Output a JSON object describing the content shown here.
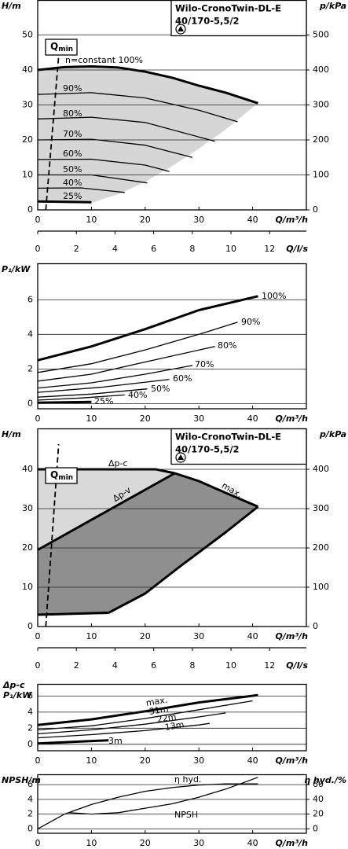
{
  "chart_data": [
    {
      "type": "line",
      "title_lines": [
        "Wilo-CronoTwin-DL-E",
        "40/170-5,5/2"
      ],
      "y_label": "H/m",
      "y2_label": "p/kPa",
      "x_label": "Q/m³/h",
      "x2_label": "Q/l/s",
      "qmin": {
        "text": "Q",
        "sub": "min"
      },
      "xlim": [
        0,
        50
      ],
      "xticks": [
        0,
        10,
        20,
        30,
        40
      ],
      "x2lim": [
        0,
        13.9
      ],
      "x2ticks": [
        0,
        2,
        4,
        6,
        8,
        10,
        12
      ],
      "ylim": [
        0,
        60
      ],
      "yticks": [
        0,
        10,
        20,
        30,
        40,
        50
      ],
      "y2lim": [
        0,
        600
      ],
      "y2ticks": [
        0,
        100,
        200,
        300,
        400,
        500
      ],
      "grid": true,
      "areas": [
        {
          "color": "#d6d6d6",
          "x": [
            0,
            5,
            10,
            15,
            20,
            25,
            30,
            35,
            41,
            35,
            30,
            25,
            20,
            15,
            10,
            0
          ],
          "values": [
            40,
            40.8,
            41,
            40.7,
            39.5,
            37.8,
            35.5,
            33.5,
            30.5,
            23,
            17.5,
            12.5,
            8,
            4.5,
            2,
            2.4
          ]
        }
      ],
      "series": [
        {
          "name": "n=constant 100%",
          "color": "#000000",
          "bold": true,
          "x": [
            0,
            5,
            10,
            15,
            20,
            25,
            30,
            35,
            41
          ],
          "values": [
            40,
            40.8,
            41,
            40.7,
            39.5,
            37.8,
            35.5,
            33.5,
            30.5
          ]
        },
        {
          "name": "90%",
          "color": "#000000",
          "x": [
            0,
            10,
            20,
            30,
            37.2
          ],
          "values": [
            33,
            33.5,
            32,
            28.5,
            25.2
          ]
        },
        {
          "name": "80%",
          "color": "#000000",
          "x": [
            0,
            10,
            20,
            33
          ],
          "values": [
            26,
            26.5,
            25,
            19.6
          ]
        },
        {
          "name": "70%",
          "color": "#000000",
          "x": [
            0,
            10,
            20,
            28.8
          ],
          "values": [
            20,
            20.2,
            18.5,
            15
          ]
        },
        {
          "name": "60%",
          "color": "#000000",
          "x": [
            0,
            10,
            20,
            24.5
          ],
          "values": [
            14.4,
            14.5,
            12.8,
            11
          ]
        },
        {
          "name": "50%",
          "color": "#000000",
          "x": [
            0,
            10,
            20.4
          ],
          "values": [
            10,
            10,
            7.7
          ]
        },
        {
          "name": "40%",
          "color": "#000000",
          "x": [
            0,
            8,
            16.2
          ],
          "values": [
            6.2,
            6.3,
            5
          ]
        },
        {
          "name": "25%",
          "color": "#000000",
          "bold": true,
          "x": [
            0,
            10
          ],
          "values": [
            2.4,
            2.2
          ]
        },
        {
          "color": "#000000",
          "dashed": true,
          "x": [
            1.5,
            3.9
          ],
          "values": [
            0,
            44
          ]
        }
      ]
    },
    {
      "type": "line",
      "y_label": "P₁/kW",
      "x_label": "Q/m³/h",
      "xlim": [
        0,
        50
      ],
      "xticks": [
        0,
        10,
        20,
        30,
        40
      ],
      "ylim": [
        -0.3,
        8.1
      ],
      "yticks": [
        0,
        2,
        4,
        6
      ],
      "grid": true,
      "series": [
        {
          "name": "100%",
          "color": "#000000",
          "bold": true,
          "x": [
            0,
            10,
            20,
            30,
            41
          ],
          "values": [
            2.5,
            3.3,
            4.3,
            5.4,
            6.2
          ]
        },
        {
          "name": "90%",
          "color": "#000000",
          "x": [
            0,
            10,
            20,
            30,
            37.2
          ],
          "values": [
            1.8,
            2.3,
            3.1,
            4.0,
            4.7
          ]
        },
        {
          "name": "80%",
          "color": "#000000",
          "x": [
            0,
            10,
            20,
            33
          ],
          "values": [
            1.3,
            1.7,
            2.4,
            3.3
          ]
        },
        {
          "name": "70%",
          "color": "#000000",
          "x": [
            0,
            10,
            20,
            28.8
          ],
          "values": [
            0.9,
            1.2,
            1.7,
            2.2
          ]
        },
        {
          "name": "60%",
          "color": "#000000",
          "x": [
            0,
            12,
            24.5
          ],
          "values": [
            0.65,
            0.95,
            1.4
          ]
        },
        {
          "name": "50%",
          "color": "#000000",
          "x": [
            0,
            10,
            20.4
          ],
          "values": [
            0.37,
            0.55,
            0.85
          ]
        },
        {
          "name": "40%",
          "color": "#000000",
          "x": [
            0,
            8,
            16.2
          ],
          "values": [
            0.2,
            0.32,
            0.5
          ]
        },
        {
          "name": "25%",
          "color": "#000000",
          "bold": true,
          "x": [
            0,
            10
          ],
          "values": [
            0.05,
            0.1
          ]
        }
      ]
    },
    {
      "type": "line",
      "title_lines": [
        "Wilo-CronoTwin-DL-E",
        "40/170-5,5/2"
      ],
      "y_label": "H/m",
      "y2_label": "p/kPa",
      "x_label": "Q/m³/h",
      "x2_label": "Q/l/s",
      "qmin": {
        "text": "Q",
        "sub": "min"
      },
      "xlim": [
        0,
        50
      ],
      "xticks": [
        0,
        10,
        20,
        30,
        40
      ],
      "x2lim": [
        0,
        13.9
      ],
      "x2ticks": [
        0,
        2,
        4,
        6,
        8,
        10,
        12
      ],
      "ylim": [
        0,
        50.4
      ],
      "yticks": [
        0,
        10,
        20,
        30,
        40
      ],
      "y2lim": [
        0,
        504
      ],
      "y2ticks": [
        0,
        100,
        200,
        300,
        400
      ],
      "grid": true,
      "areas": [
        {
          "color": "#d9d9d9",
          "x": [
            0,
            22,
            25.5,
            0
          ],
          "values": [
            40,
            40,
            39,
            19.5
          ]
        },
        {
          "color": "#8f8f8f",
          "x": [
            0,
            25.5,
            30,
            35,
            41,
            35,
            26.6,
            20,
            13.2,
            0
          ],
          "values": [
            19.5,
            39,
            37,
            34,
            30.5,
            24,
            15.4,
            8.4,
            3.5,
            3
          ]
        }
      ],
      "series": [
        {
          "name": "Δp-c",
          "color": "#000000",
          "bold": true,
          "x": [
            0,
            22
          ],
          "values": [
            40,
            40
          ]
        },
        {
          "name": "Δp-v",
          "color": "#000000",
          "bold": true,
          "x": [
            0,
            25.5
          ],
          "values": [
            19.5,
            39
          ]
        },
        {
          "name": "max.",
          "color": "#000000",
          "bold": true,
          "x": [
            22,
            25.5,
            30,
            35,
            41
          ],
          "values": [
            40,
            39,
            37,
            34,
            30.5
          ]
        },
        {
          "color": "#000000",
          "bold": true,
          "x": [
            0,
            13.2
          ],
          "values": [
            3,
            3.5
          ]
        },
        {
          "color": "#000000",
          "bold": true,
          "x": [
            13.2,
            20,
            26.6,
            35,
            41
          ],
          "values": [
            3.5,
            8.4,
            15.4,
            24,
            30.5
          ]
        },
        {
          "color": "#000000",
          "dashed": true,
          "x": [
            1.5,
            3.9
          ],
          "values": [
            0,
            46.4
          ]
        }
      ]
    },
    {
      "type": "line",
      "y_label_top": "Δp-c",
      "y_label": "P₁/kW",
      "x_label": "Q/m³/h",
      "xlim": [
        0,
        50
      ],
      "xticks": [
        0,
        10,
        20,
        30,
        40
      ],
      "ylim": [
        -0.8,
        7.5
      ],
      "yticks": [
        0,
        2,
        4,
        6
      ],
      "grid": true,
      "series": [
        {
          "name": "max.",
          "color": "#000000",
          "bold": true,
          "x": [
            0,
            10,
            20,
            30,
            41
          ],
          "values": [
            2.4,
            3.1,
            4.1,
            5.2,
            6.1
          ]
        },
        {
          "name": "31m",
          "color": "#000000",
          "x": [
            0,
            10,
            20,
            30,
            40
          ],
          "values": [
            1.8,
            2.3,
            3.2,
            4.3,
            5.4
          ]
        },
        {
          "name": "22m",
          "color": "#000000",
          "x": [
            0,
            10,
            20,
            30,
            35
          ],
          "values": [
            1.3,
            1.8,
            2.5,
            3.4,
            3.9
          ]
        },
        {
          "name": "13m",
          "color": "#000000",
          "x": [
            0,
            10,
            20,
            30,
            32
          ],
          "values": [
            0.8,
            1.2,
            1.7,
            2.4,
            2.6
          ]
        },
        {
          "name": "3m",
          "color": "#000000",
          "bold": true,
          "x": [
            0,
            13.2
          ],
          "values": [
            0.1,
            0.5
          ]
        }
      ]
    },
    {
      "type": "line",
      "y_label": "NPSH/m",
      "y2_label": "η hyd./%",
      "x_label": "Q/m³/h",
      "xlim": [
        0,
        50
      ],
      "xticks": [
        0,
        10,
        20,
        30,
        40
      ],
      "ylim": [
        -0.6,
        7.4
      ],
      "yticks": [
        0,
        2,
        4,
        6
      ],
      "y2lim": [
        -6,
        74
      ],
      "y2ticks": [
        0,
        20,
        40,
        60
      ],
      "grid": true,
      "series": [
        {
          "name": "η hyd.",
          "color": "#000000",
          "axis": "y2",
          "x": [
            0,
            5,
            10,
            15,
            20,
            25,
            30,
            35,
            41
          ],
          "values": [
            0,
            20,
            33,
            43,
            51,
            56,
            59.5,
            61,
            61
          ]
        },
        {
          "name": "NPSH",
          "color": "#000000",
          "x": [
            5.8,
            10,
            15,
            20,
            25,
            30,
            35,
            41
          ],
          "values": [
            2.2,
            2.0,
            2.2,
            2.8,
            3.4,
            4.3,
            5.4,
            7.0
          ]
        }
      ]
    }
  ]
}
